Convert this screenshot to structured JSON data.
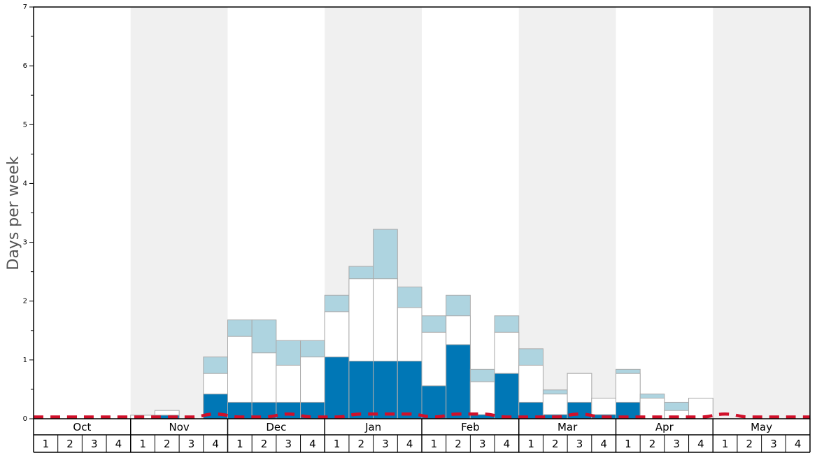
{
  "chart_data": {
    "type": "bar",
    "ylabel": "Days per week",
    "ylim": [
      0,
      7
    ],
    "yticks": [
      "0",
      "1",
      "2",
      "3",
      "4",
      "5",
      "6",
      "7"
    ],
    "months": [
      "Oct",
      "Nov",
      "Dec",
      "Jan",
      "Feb",
      "Mar",
      "Apr",
      "May"
    ],
    "week_labels": [
      "1",
      "2",
      "3",
      "4"
    ],
    "colors": {
      "dark": "#0077b6",
      "mid": "#ffffff",
      "light": "#aed4e0",
      "line": "#d0102a",
      "shade": "#f0f0f0"
    },
    "series": [
      {
        "name": "dark",
        "values": [
          0,
          0,
          0,
          0,
          0,
          0.06,
          0,
          0.42,
          0.28,
          0.28,
          0.28,
          0.28,
          1.05,
          0.98,
          0.98,
          0.98,
          0.56,
          1.26,
          0.07,
          0.77,
          0.28,
          0.07,
          0.28,
          0.07,
          0.28,
          0,
          0,
          0,
          0,
          0,
          0,
          0
        ]
      },
      {
        "name": "mid",
        "values": [
          0,
          0,
          0,
          0,
          0.06,
          0.14,
          0,
          0.77,
          1.4,
          1.12,
          0.91,
          1.05,
          1.82,
          2.38,
          2.38,
          1.89,
          1.47,
          1.75,
          0.63,
          1.47,
          0.91,
          0.42,
          0.77,
          0.35,
          0.77,
          0.35,
          0.14,
          0.35,
          0,
          0,
          0,
          0
        ]
      },
      {
        "name": "light",
        "values": [
          0,
          0,
          0,
          0,
          0.06,
          0.14,
          0,
          1.05,
          1.68,
          1.68,
          1.33,
          1.33,
          2.1,
          2.59,
          3.22,
          2.24,
          1.75,
          2.1,
          0.84,
          1.75,
          1.19,
          0.49,
          0.77,
          0.35,
          0.84,
          0.42,
          0.28,
          0.35,
          0,
          0,
          0,
          0
        ]
      },
      {
        "name": "line",
        "values": [
          0.03,
          0.03,
          0.03,
          0.03,
          0.03,
          0.03,
          0.03,
          0.08,
          0.03,
          0.03,
          0.08,
          0.03,
          0.03,
          0.08,
          0.08,
          0.08,
          0.03,
          0.08,
          0.08,
          0.03,
          0.03,
          0.03,
          0.08,
          0.03,
          0.03,
          0.03,
          0.03,
          0.03,
          0.08,
          0.03,
          0.03,
          0.03
        ]
      }
    ]
  }
}
